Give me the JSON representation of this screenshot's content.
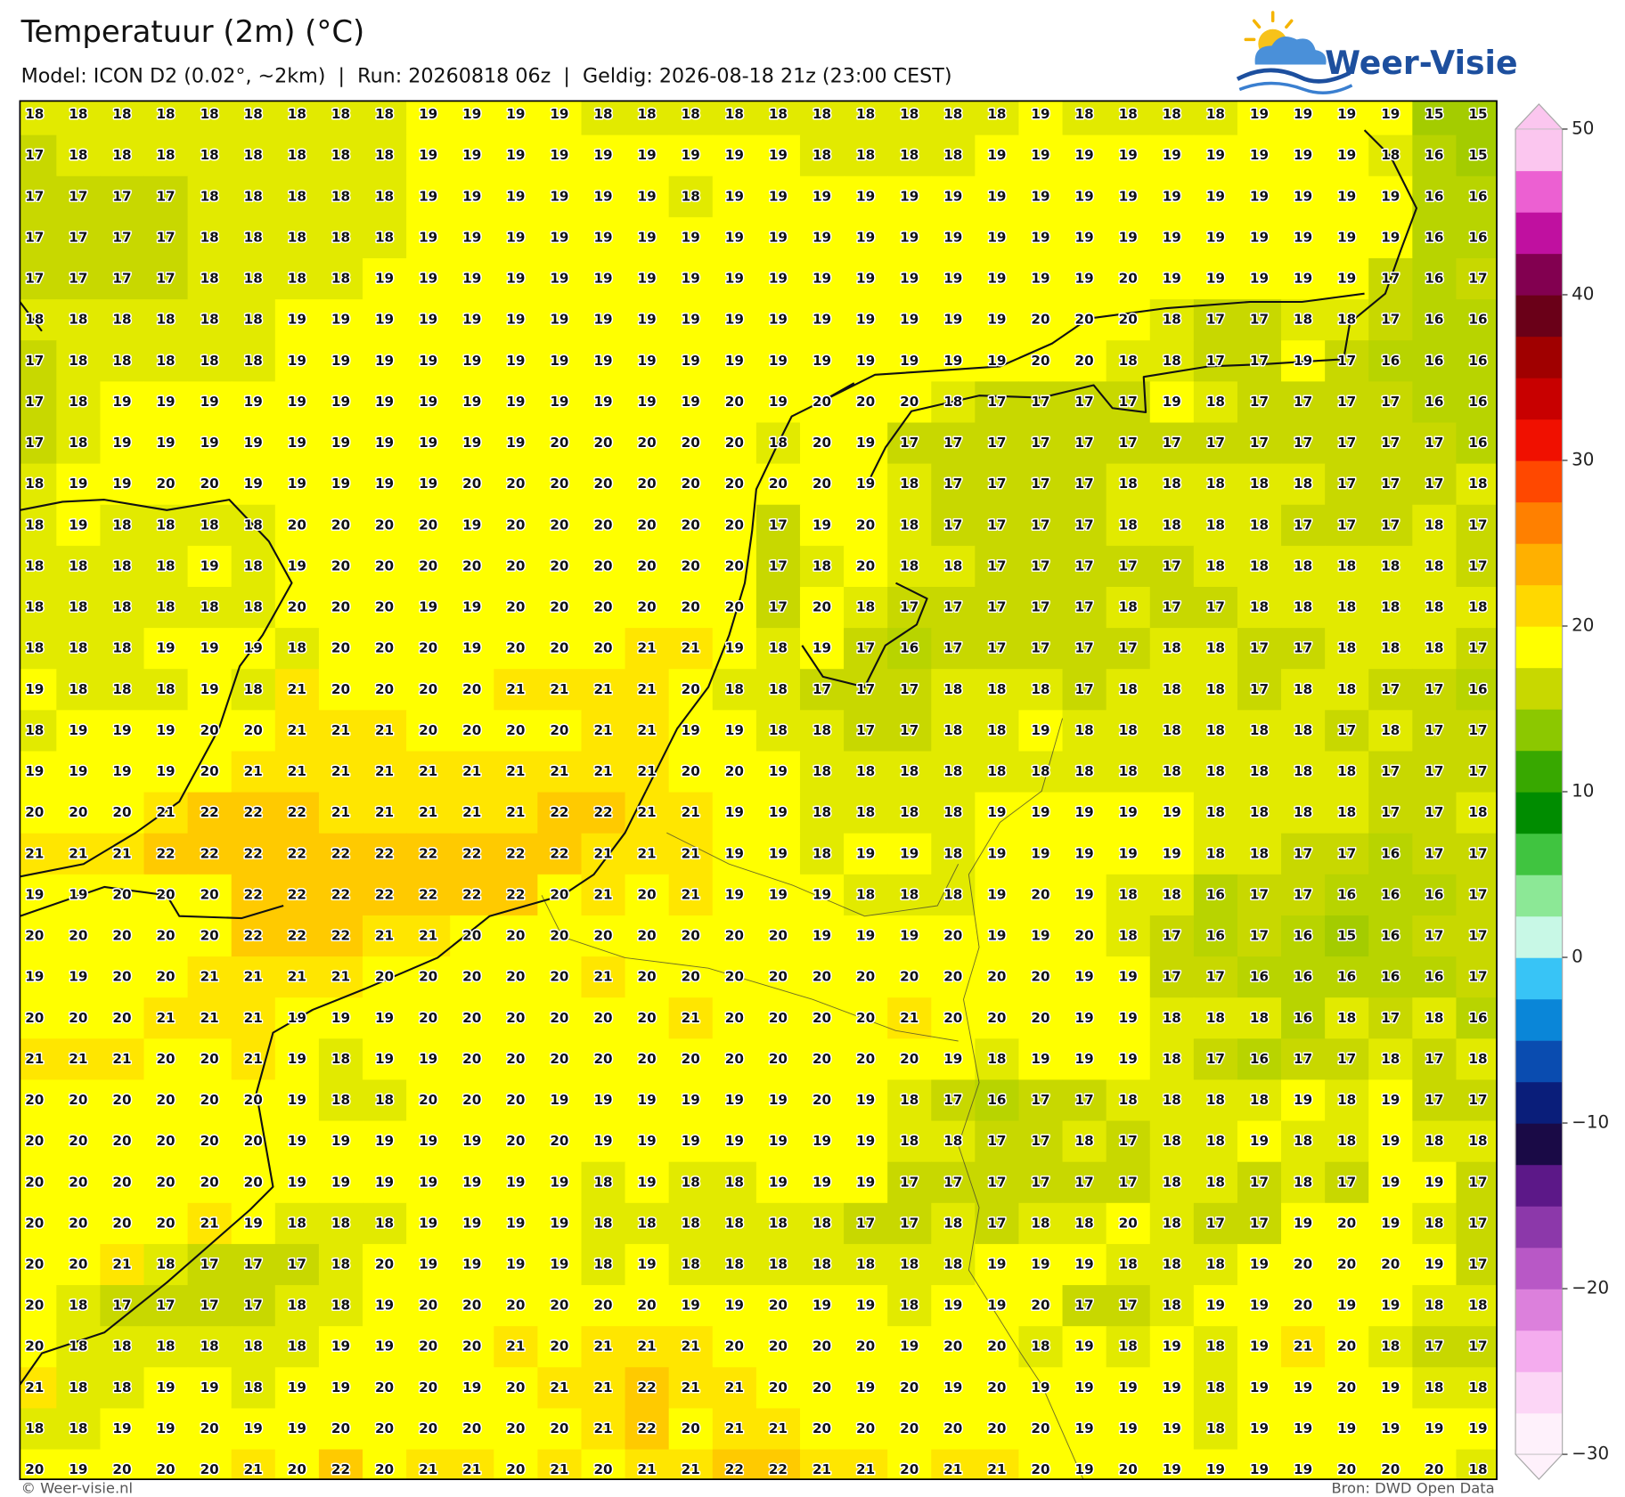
{
  "header": {
    "title": "Temperatuur (2m) (°C)",
    "subtitle": "Model: ICON D2 (0.02°, ~2km)  |  Run: 20260818 06z  |  Geldig: 2026-08-18 21z (23:00 CEST)"
  },
  "logo": {
    "text": "Weer-Visie"
  },
  "map": {
    "values": [
      [
        18,
        18,
        18,
        18,
        18,
        18,
        18,
        18,
        18,
        19,
        19,
        19,
        19,
        18,
        18,
        18,
        18,
        18,
        18,
        18,
        18,
        18,
        18,
        19,
        18,
        18,
        18,
        18,
        19,
        19,
        19,
        19,
        15,
        15
      ],
      [
        17,
        18,
        18,
        18,
        18,
        18,
        18,
        18,
        18,
        19,
        19,
        19,
        19,
        19,
        19,
        19,
        19,
        19,
        18,
        18,
        18,
        18,
        19,
        19,
        19,
        19,
        19,
        19,
        19,
        19,
        19,
        18,
        16,
        15
      ],
      [
        17,
        17,
        17,
        17,
        18,
        18,
        18,
        18,
        18,
        19,
        19,
        19,
        19,
        19,
        19,
        18,
        19,
        19,
        19,
        19,
        19,
        19,
        19,
        19,
        19,
        19,
        19,
        19,
        19,
        19,
        19,
        19,
        16,
        16
      ],
      [
        17,
        17,
        17,
        17,
        18,
        18,
        18,
        18,
        18,
        19,
        19,
        19,
        19,
        19,
        19,
        19,
        19,
        19,
        19,
        19,
        19,
        19,
        19,
        19,
        19,
        19,
        19,
        19,
        19,
        19,
        19,
        19,
        16,
        16
      ],
      [
        17,
        17,
        17,
        17,
        18,
        18,
        18,
        18,
        19,
        19,
        19,
        19,
        19,
        19,
        19,
        19,
        19,
        19,
        19,
        19,
        19,
        19,
        19,
        19,
        19,
        20,
        19,
        19,
        19,
        19,
        19,
        17,
        16,
        17
      ],
      [
        18,
        18,
        18,
        18,
        18,
        18,
        19,
        19,
        19,
        19,
        19,
        19,
        19,
        19,
        19,
        19,
        19,
        19,
        19,
        19,
        19,
        19,
        19,
        20,
        20,
        20,
        18,
        17,
        17,
        18,
        18,
        17,
        16,
        16
      ],
      [
        17,
        18,
        18,
        18,
        18,
        18,
        19,
        19,
        19,
        19,
        19,
        19,
        19,
        19,
        19,
        19,
        19,
        19,
        19,
        19,
        19,
        19,
        19,
        20,
        20,
        18,
        18,
        17,
        17,
        19,
        17,
        16,
        16,
        16
      ],
      [
        17,
        18,
        19,
        19,
        19,
        19,
        19,
        19,
        19,
        19,
        19,
        19,
        19,
        19,
        19,
        19,
        20,
        19,
        20,
        20,
        20,
        18,
        17,
        17,
        17,
        17,
        19,
        18,
        17,
        17,
        17,
        17,
        16,
        16
      ],
      [
        17,
        18,
        19,
        19,
        19,
        19,
        19,
        19,
        19,
        19,
        19,
        19,
        20,
        20,
        20,
        20,
        20,
        18,
        20,
        19,
        17,
        17,
        17,
        17,
        17,
        17,
        17,
        17,
        17,
        17,
        17,
        17,
        17,
        16
      ],
      [
        18,
        19,
        19,
        20,
        20,
        19,
        19,
        19,
        19,
        19,
        20,
        20,
        20,
        20,
        20,
        20,
        20,
        20,
        20,
        19,
        18,
        17,
        17,
        17,
        17,
        18,
        18,
        18,
        18,
        18,
        17,
        17,
        17,
        18
      ],
      [
        18,
        19,
        18,
        18,
        18,
        18,
        20,
        20,
        20,
        20,
        19,
        20,
        20,
        20,
        20,
        20,
        20,
        17,
        19,
        20,
        18,
        17,
        17,
        17,
        17,
        18,
        18,
        18,
        18,
        17,
        17,
        17,
        18,
        17
      ],
      [
        18,
        18,
        18,
        18,
        19,
        18,
        19,
        20,
        20,
        20,
        20,
        20,
        20,
        20,
        20,
        20,
        20,
        17,
        18,
        20,
        18,
        18,
        17,
        17,
        17,
        17,
        17,
        18,
        18,
        18,
        18,
        18,
        18,
        17
      ],
      [
        18,
        18,
        18,
        18,
        18,
        18,
        20,
        20,
        20,
        19,
        19,
        20,
        20,
        20,
        20,
        20,
        20,
        17,
        20,
        18,
        17,
        17,
        17,
        17,
        17,
        18,
        17,
        17,
        18,
        18,
        18,
        18,
        18,
        18
      ],
      [
        18,
        18,
        18,
        19,
        19,
        19,
        18,
        20,
        20,
        20,
        19,
        20,
        20,
        20,
        21,
        21,
        19,
        18,
        19,
        17,
        16,
        17,
        17,
        17,
        17,
        17,
        18,
        18,
        17,
        17,
        18,
        18,
        18,
        17
      ],
      [
        19,
        18,
        18,
        18,
        19,
        18,
        21,
        20,
        20,
        20,
        20,
        21,
        21,
        21,
        21,
        20,
        18,
        18,
        17,
        17,
        17,
        18,
        18,
        18,
        17,
        18,
        18,
        18,
        17,
        18,
        18,
        17,
        17,
        16
      ],
      [
        18,
        19,
        19,
        19,
        20,
        20,
        21,
        21,
        21,
        20,
        20,
        20,
        20,
        21,
        21,
        19,
        19,
        18,
        18,
        17,
        17,
        18,
        18,
        19,
        18,
        18,
        18,
        18,
        18,
        18,
        17,
        18,
        17,
        17
      ],
      [
        19,
        19,
        19,
        19,
        20,
        21,
        21,
        21,
        21,
        21,
        21,
        21,
        21,
        21,
        21,
        20,
        20,
        19,
        18,
        18,
        18,
        18,
        18,
        18,
        18,
        18,
        18,
        18,
        18,
        18,
        18,
        17,
        17,
        17
      ],
      [
        20,
        20,
        20,
        21,
        22,
        22,
        22,
        21,
        21,
        21,
        21,
        21,
        22,
        22,
        21,
        21,
        19,
        19,
        18,
        18,
        18,
        18,
        19,
        19,
        19,
        19,
        19,
        18,
        18,
        18,
        18,
        17,
        17,
        18
      ],
      [
        21,
        21,
        21,
        22,
        22,
        22,
        22,
        22,
        22,
        22,
        22,
        22,
        22,
        21,
        21,
        21,
        19,
        19,
        18,
        19,
        19,
        18,
        19,
        19,
        19,
        19,
        19,
        18,
        18,
        17,
        17,
        16,
        17,
        17
      ],
      [
        19,
        19,
        20,
        20,
        20,
        22,
        22,
        22,
        22,
        22,
        22,
        22,
        20,
        21,
        20,
        21,
        19,
        19,
        19,
        18,
        18,
        18,
        19,
        20,
        19,
        18,
        18,
        16,
        17,
        17,
        16,
        16,
        16,
        17
      ],
      [
        20,
        20,
        20,
        20,
        20,
        22,
        22,
        22,
        21,
        21,
        20,
        20,
        20,
        20,
        20,
        20,
        20,
        20,
        19,
        19,
        19,
        20,
        19,
        19,
        20,
        18,
        17,
        16,
        17,
        16,
        15,
        16,
        17,
        17
      ],
      [
        19,
        19,
        20,
        20,
        21,
        21,
        21,
        21,
        20,
        20,
        20,
        20,
        20,
        21,
        20,
        20,
        20,
        20,
        20,
        20,
        20,
        20,
        20,
        20,
        19,
        19,
        17,
        17,
        16,
        16,
        16,
        16,
        16,
        17
      ],
      [
        20,
        20,
        20,
        21,
        21,
        21,
        19,
        19,
        19,
        20,
        20,
        20,
        20,
        20,
        20,
        21,
        20,
        20,
        20,
        20,
        21,
        20,
        20,
        20,
        19,
        19,
        18,
        18,
        18,
        16,
        18,
        17,
        18,
        16
      ],
      [
        21,
        21,
        21,
        20,
        20,
        21,
        19,
        18,
        19,
        19,
        20,
        20,
        20,
        20,
        20,
        20,
        20,
        20,
        20,
        20,
        20,
        19,
        18,
        19,
        19,
        19,
        18,
        17,
        16,
        17,
        17,
        18,
        17,
        18
      ],
      [
        20,
        20,
        20,
        20,
        20,
        20,
        19,
        18,
        18,
        20,
        20,
        20,
        19,
        19,
        19,
        19,
        19,
        19,
        20,
        19,
        18,
        17,
        16,
        17,
        17,
        18,
        18,
        18,
        18,
        19,
        18,
        19,
        17,
        17
      ],
      [
        20,
        20,
        20,
        20,
        20,
        20,
        19,
        19,
        19,
        19,
        19,
        20,
        20,
        19,
        19,
        19,
        19,
        19,
        19,
        19,
        18,
        18,
        17,
        17,
        18,
        17,
        18,
        18,
        19,
        18,
        18,
        19,
        18,
        18
      ],
      [
        20,
        20,
        20,
        20,
        20,
        20,
        19,
        19,
        19,
        19,
        19,
        19,
        19,
        18,
        19,
        18,
        18,
        19,
        19,
        19,
        17,
        17,
        17,
        17,
        17,
        17,
        18,
        18,
        17,
        18,
        17,
        19,
        19,
        17
      ],
      [
        20,
        20,
        20,
        20,
        21,
        19,
        18,
        18,
        18,
        19,
        19,
        19,
        19,
        18,
        18,
        18,
        18,
        18,
        18,
        17,
        17,
        18,
        17,
        18,
        18,
        20,
        18,
        17,
        17,
        19,
        20,
        19,
        18,
        17
      ],
      [
        20,
        20,
        21,
        18,
        17,
        17,
        17,
        18,
        20,
        19,
        19,
        19,
        19,
        18,
        19,
        18,
        18,
        18,
        18,
        18,
        18,
        18,
        19,
        19,
        19,
        18,
        18,
        18,
        19,
        20,
        20,
        20,
        19,
        17
      ],
      [
        20,
        18,
        17,
        17,
        17,
        17,
        18,
        18,
        19,
        20,
        20,
        20,
        20,
        20,
        20,
        19,
        19,
        20,
        19,
        19,
        18,
        19,
        19,
        20,
        17,
        17,
        18,
        19,
        19,
        20,
        19,
        19,
        18,
        18
      ],
      [
        20,
        18,
        18,
        18,
        18,
        18,
        18,
        19,
        19,
        20,
        20,
        21,
        20,
        21,
        21,
        21,
        20,
        20,
        20,
        20,
        19,
        20,
        20,
        18,
        19,
        18,
        19,
        18,
        19,
        21,
        20,
        18,
        17,
        17
      ],
      [
        21,
        18,
        18,
        19,
        19,
        18,
        19,
        19,
        20,
        20,
        19,
        20,
        21,
        21,
        22,
        21,
        21,
        20,
        20,
        19,
        20,
        19,
        20,
        19,
        19,
        19,
        19,
        18,
        19,
        19,
        20,
        19,
        18,
        18
      ],
      [
        18,
        18,
        19,
        19,
        20,
        19,
        19,
        20,
        20,
        20,
        20,
        20,
        20,
        21,
        22,
        20,
        21,
        21,
        20,
        20,
        20,
        20,
        20,
        20,
        19,
        19,
        19,
        18,
        19,
        19,
        19,
        19,
        19,
        19
      ],
      [
        20,
        19,
        20,
        20,
        20,
        21,
        20,
        22,
        20,
        21,
        21,
        20,
        21,
        20,
        21,
        21,
        22,
        22,
        21,
        21,
        20,
        21,
        21,
        20,
        19,
        20,
        19,
        19,
        19,
        19,
        20,
        20,
        20,
        18
      ]
    ]
  },
  "colorbar": {
    "lim": [
      -30,
      50
    ],
    "ticks": [
      50,
      40,
      30,
      20,
      10,
      0,
      {
        "value": -10,
        "label": "−10"
      },
      {
        "value": -20,
        "label": "−20"
      },
      {
        "value": -30,
        "label": "−30"
      }
    ],
    "colors": [
      "#fef1fb",
      "#fcd6f6",
      "#f4acee",
      "#dc80dc",
      "#b858c6",
      "#8c38aa",
      "#5c1888",
      "#1a0a46",
      "#0a1e7a",
      "#0a4cb0",
      "#0a86d8",
      "#38c4f6",
      "#c8f8e6",
      "#8ce896",
      "#40c440",
      "#008c00",
      "#38a800",
      "#8cc800",
      "#c8d800",
      "#ffff00",
      "#ffd800",
      "#ffb000",
      "#ff8000",
      "#ff4800",
      "#f01000",
      "#c80000",
      "#a00000",
      "#6a0018",
      "#820050",
      "#c010a0",
      "#ec60d2",
      "#fbc6ef"
    ]
  },
  "footer": {
    "left": "© Weer-visie.nl",
    "right": "Bron: DWD Open Data"
  }
}
